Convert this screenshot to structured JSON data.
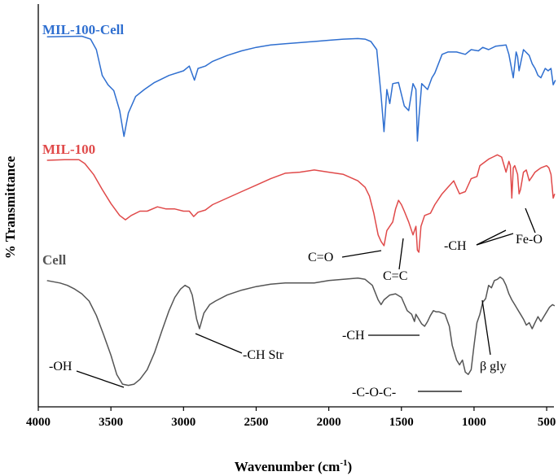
{
  "chart_data": {
    "type": "line",
    "xlabel": "Wavenumber (cm",
    "xlabel_sup": "-1",
    "xlabel_end": ")",
    "ylabel": "% Transmittance",
    "xlim": [
      4000,
      450
    ],
    "x_ticks": [
      "4000",
      "3500",
      "3000",
      "2500",
      "2000",
      "1500",
      "1000",
      "500"
    ],
    "grid": false,
    "legend": "none",
    "series": [
      {
        "name": "MIL-100-Cell",
        "color": "#2f6fd0",
        "points": [
          [
            3940,
            0.95
          ],
          [
            3700,
            0.955
          ],
          [
            3640,
            0.93
          ],
          [
            3600,
            0.84
          ],
          [
            3560,
            0.62
          ],
          [
            3520,
            0.54
          ],
          [
            3480,
            0.49
          ],
          [
            3440,
            0.32
          ],
          [
            3410,
            0.1
          ],
          [
            3380,
            0.3
          ],
          [
            3330,
            0.44
          ],
          [
            3270,
            0.5
          ],
          [
            3200,
            0.56
          ],
          [
            3100,
            0.62
          ],
          [
            3000,
            0.66
          ],
          [
            2960,
            0.7
          ],
          [
            2925,
            0.58
          ],
          [
            2900,
            0.68
          ],
          [
            2850,
            0.7
          ],
          [
            2800,
            0.74
          ],
          [
            2700,
            0.79
          ],
          [
            2600,
            0.83
          ],
          [
            2500,
            0.86
          ],
          [
            2400,
            0.88
          ],
          [
            2300,
            0.89
          ],
          [
            2200,
            0.9
          ],
          [
            2100,
            0.91
          ],
          [
            2000,
            0.92
          ],
          [
            1900,
            0.93
          ],
          [
            1800,
            0.935
          ],
          [
            1750,
            0.93
          ],
          [
            1710,
            0.91
          ],
          [
            1670,
            0.84
          ],
          [
            1640,
            0.45
          ],
          [
            1620,
            0.14
          ],
          [
            1600,
            0.5
          ],
          [
            1580,
            0.38
          ],
          [
            1560,
            0.55
          ],
          [
            1520,
            0.56
          ],
          [
            1480,
            0.36
          ],
          [
            1450,
            0.32
          ],
          [
            1420,
            0.55
          ],
          [
            1400,
            0.5
          ],
          [
            1390,
            0.06
          ],
          [
            1380,
            0.25
          ],
          [
            1360,
            0.55
          ],
          [
            1320,
            0.5
          ],
          [
            1290,
            0.6
          ],
          [
            1270,
            0.64
          ],
          [
            1220,
            0.8
          ],
          [
            1180,
            0.82
          ],
          [
            1120,
            0.82
          ],
          [
            1060,
            0.8
          ],
          [
            1020,
            0.84
          ],
          [
            970,
            0.83
          ],
          [
            940,
            0.86
          ],
          [
            900,
            0.84
          ],
          [
            850,
            0.87
          ],
          [
            780,
            0.88
          ],
          [
            760,
            0.8
          ],
          [
            745,
            0.7
          ],
          [
            730,
            0.6
          ],
          [
            710,
            0.82
          ],
          [
            700,
            0.78
          ],
          [
            690,
            0.66
          ],
          [
            660,
            0.84
          ],
          [
            620,
            0.79
          ],
          [
            600,
            0.72
          ],
          [
            580,
            0.68
          ],
          [
            560,
            0.62
          ],
          [
            540,
            0.6
          ],
          [
            510,
            0.68
          ],
          [
            490,
            0.66
          ],
          [
            470,
            0.68
          ],
          [
            455,
            0.54
          ],
          [
            440,
            0.58
          ]
        ]
      },
      {
        "name": "MIL-100",
        "color": "#e04a4a",
        "points": [
          [
            3940,
            0.91
          ],
          [
            3820,
            0.915
          ],
          [
            3720,
            0.915
          ],
          [
            3680,
            0.88
          ],
          [
            3620,
            0.78
          ],
          [
            3560,
            0.64
          ],
          [
            3500,
            0.51
          ],
          [
            3440,
            0.4
          ],
          [
            3400,
            0.36
          ],
          [
            3360,
            0.4
          ],
          [
            3300,
            0.44
          ],
          [
            3250,
            0.44
          ],
          [
            3180,
            0.48
          ],
          [
            3120,
            0.46
          ],
          [
            3060,
            0.46
          ],
          [
            3000,
            0.44
          ],
          [
            2960,
            0.44
          ],
          [
            2930,
            0.39
          ],
          [
            2900,
            0.43
          ],
          [
            2850,
            0.45
          ],
          [
            2800,
            0.5
          ],
          [
            2700,
            0.56
          ],
          [
            2600,
            0.62
          ],
          [
            2500,
            0.68
          ],
          [
            2400,
            0.74
          ],
          [
            2300,
            0.79
          ],
          [
            2200,
            0.8
          ],
          [
            2100,
            0.82
          ],
          [
            2000,
            0.8
          ],
          [
            1900,
            0.78
          ],
          [
            1800,
            0.72
          ],
          [
            1750,
            0.66
          ],
          [
            1720,
            0.58
          ],
          [
            1690,
            0.42
          ],
          [
            1660,
            0.22
          ],
          [
            1640,
            0.16
          ],
          [
            1620,
            0.12
          ],
          [
            1600,
            0.26
          ],
          [
            1580,
            0.3
          ],
          [
            1560,
            0.34
          ],
          [
            1540,
            0.46
          ],
          [
            1520,
            0.54
          ],
          [
            1500,
            0.5
          ],
          [
            1480,
            0.44
          ],
          [
            1450,
            0.34
          ],
          [
            1420,
            0.22
          ],
          [
            1400,
            0.3
          ],
          [
            1390,
            0.08
          ],
          [
            1380,
            0.06
          ],
          [
            1365,
            0.3
          ],
          [
            1340,
            0.4
          ],
          [
            1300,
            0.42
          ],
          [
            1270,
            0.5
          ],
          [
            1220,
            0.6
          ],
          [
            1180,
            0.66
          ],
          [
            1140,
            0.72
          ],
          [
            1120,
            0.66
          ],
          [
            1100,
            0.6
          ],
          [
            1060,
            0.62
          ],
          [
            1020,
            0.74
          ],
          [
            980,
            0.76
          ],
          [
            960,
            0.86
          ],
          [
            940,
            0.88
          ],
          [
            900,
            0.92
          ],
          [
            870,
            0.94
          ],
          [
            840,
            0.96
          ],
          [
            810,
            0.94
          ],
          [
            780,
            0.8
          ],
          [
            760,
            0.9
          ],
          [
            750,
            0.86
          ],
          [
            740,
            0.56
          ],
          [
            730,
            0.84
          ],
          [
            720,
            0.86
          ],
          [
            700,
            0.78
          ],
          [
            690,
            0.6
          ],
          [
            680,
            0.64
          ],
          [
            660,
            0.8
          ],
          [
            640,
            0.82
          ],
          [
            620,
            0.72
          ],
          [
            600,
            0.76
          ],
          [
            580,
            0.8
          ],
          [
            560,
            0.82
          ],
          [
            540,
            0.84
          ],
          [
            520,
            0.85
          ],
          [
            500,
            0.86
          ],
          [
            485,
            0.84
          ],
          [
            470,
            0.78
          ],
          [
            455,
            0.56
          ],
          [
            445,
            0.6
          ]
        ]
      },
      {
        "name": "Cell",
        "color": "#555555",
        "points": [
          [
            3940,
            0.9
          ],
          [
            3850,
            0.88
          ],
          [
            3800,
            0.86
          ],
          [
            3750,
            0.83
          ],
          [
            3700,
            0.79
          ],
          [
            3650,
            0.73
          ],
          [
            3600,
            0.61
          ],
          [
            3550,
            0.45
          ],
          [
            3500,
            0.28
          ],
          [
            3460,
            0.12
          ],
          [
            3420,
            0.04
          ],
          [
            3380,
            0.03
          ],
          [
            3340,
            0.04
          ],
          [
            3300,
            0.08
          ],
          [
            3250,
            0.16
          ],
          [
            3200,
            0.3
          ],
          [
            3150,
            0.48
          ],
          [
            3100,
            0.65
          ],
          [
            3060,
            0.76
          ],
          [
            3020,
            0.83
          ],
          [
            2990,
            0.86
          ],
          [
            2960,
            0.84
          ],
          [
            2940,
            0.78
          ],
          [
            2910,
            0.58
          ],
          [
            2890,
            0.5
          ],
          [
            2860,
            0.63
          ],
          [
            2820,
            0.7
          ],
          [
            2780,
            0.73
          ],
          [
            2700,
            0.78
          ],
          [
            2600,
            0.82
          ],
          [
            2500,
            0.85
          ],
          [
            2400,
            0.87
          ],
          [
            2300,
            0.88
          ],
          [
            2200,
            0.88
          ],
          [
            2100,
            0.88
          ],
          [
            2000,
            0.9
          ],
          [
            1900,
            0.91
          ],
          [
            1800,
            0.92
          ],
          [
            1750,
            0.91
          ],
          [
            1700,
            0.86
          ],
          [
            1660,
            0.74
          ],
          [
            1640,
            0.7
          ],
          [
            1620,
            0.74
          ],
          [
            1580,
            0.78
          ],
          [
            1540,
            0.79
          ],
          [
            1500,
            0.76
          ],
          [
            1460,
            0.65
          ],
          [
            1430,
            0.62
          ],
          [
            1410,
            0.56
          ],
          [
            1400,
            0.62
          ],
          [
            1380,
            0.58
          ],
          [
            1360,
            0.54
          ],
          [
            1340,
            0.52
          ],
          [
            1320,
            0.56
          ],
          [
            1300,
            0.61
          ],
          [
            1280,
            0.65
          ],
          [
            1260,
            0.64
          ],
          [
            1240,
            0.64
          ],
          [
            1200,
            0.62
          ],
          [
            1170,
            0.52
          ],
          [
            1150,
            0.36
          ],
          [
            1120,
            0.24
          ],
          [
            1100,
            0.2
          ],
          [
            1080,
            0.24
          ],
          [
            1060,
            0.14
          ],
          [
            1040,
            0.12
          ],
          [
            1020,
            0.16
          ],
          [
            1000,
            0.36
          ],
          [
            980,
            0.55
          ],
          [
            960,
            0.62
          ],
          [
            940,
            0.72
          ],
          [
            920,
            0.75
          ],
          [
            900,
            0.86
          ],
          [
            880,
            0.84
          ],
          [
            860,
            0.9
          ],
          [
            840,
            0.91
          ],
          [
            820,
            0.93
          ],
          [
            800,
            0.91
          ],
          [
            780,
            0.86
          ],
          [
            760,
            0.79
          ],
          [
            740,
            0.74
          ],
          [
            720,
            0.7
          ],
          [
            700,
            0.66
          ],
          [
            680,
            0.62
          ],
          [
            660,
            0.58
          ],
          [
            640,
            0.53
          ],
          [
            620,
            0.55
          ],
          [
            600,
            0.5
          ],
          [
            580,
            0.55
          ],
          [
            560,
            0.6
          ],
          [
            540,
            0.56
          ],
          [
            520,
            0.6
          ],
          [
            500,
            0.64
          ],
          [
            480,
            0.68
          ],
          [
            460,
            0.7
          ],
          [
            445,
            0.69
          ]
        ]
      }
    ],
    "annotations": [
      {
        "id": "oh",
        "text": "-OH",
        "color": "#000000"
      },
      {
        "id": "ch-str",
        "text": "-CH Str",
        "color": "#000000"
      },
      {
        "id": "c-o",
        "text": "C=O",
        "color": "#000000"
      },
      {
        "id": "c-c",
        "text": "C=C",
        "color": "#000000"
      },
      {
        "id": "ch-red",
        "text": "-CH",
        "color": "#000000"
      },
      {
        "id": "fe-o",
        "text": "Fe-O",
        "color": "#000000"
      },
      {
        "id": "ch-gray",
        "text": "-CH",
        "color": "#000000"
      },
      {
        "id": "beta-gly",
        "text": "β gly",
        "color": "#000000"
      },
      {
        "id": "coc",
        "text": "-C-O-C-",
        "color": "#000000"
      }
    ]
  }
}
